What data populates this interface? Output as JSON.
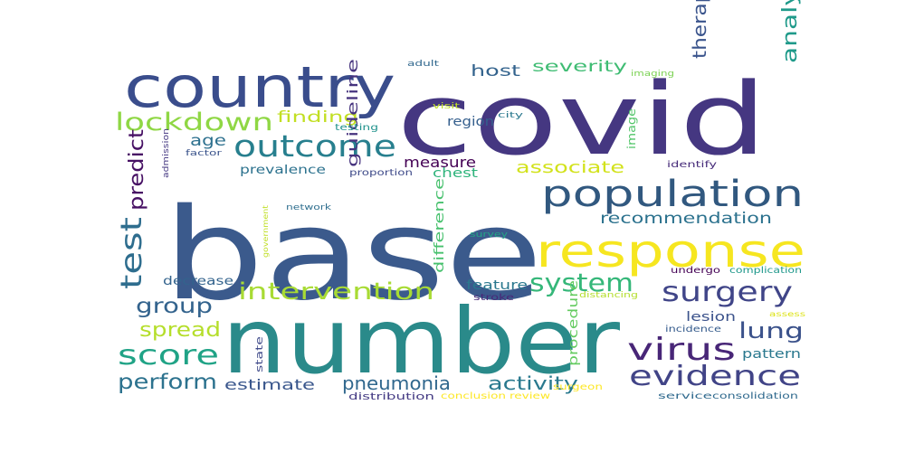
{
  "wordcloud": {
    "words": [
      {
        "text": "base",
        "color": "#3b5a8c"
      },
      {
        "text": "covid",
        "color": "#453781"
      },
      {
        "text": "number",
        "color": "#2a8a8a"
      },
      {
        "text": "country",
        "color": "#3a4d8c"
      },
      {
        "text": "response",
        "color": "#f6e620"
      },
      {
        "text": "population",
        "color": "#31587f"
      },
      {
        "text": "outcome",
        "color": "#277f8e"
      },
      {
        "text": "lockdown",
        "color": "#8fd744"
      },
      {
        "text": "virus",
        "color": "#482677"
      },
      {
        "text": "evidence",
        "color": "#414487"
      },
      {
        "text": "intervention",
        "color": "#a8db34"
      },
      {
        "text": "surgery",
        "color": "#404588"
      },
      {
        "text": "test",
        "color": "#2e6d8e"
      },
      {
        "text": "system",
        "color": "#35b779"
      },
      {
        "text": "score",
        "color": "#20a386"
      },
      {
        "text": "group",
        "color": "#33638d"
      },
      {
        "text": "predict",
        "color": "#471164"
      },
      {
        "text": "perform",
        "color": "#2c728e"
      },
      {
        "text": "lung",
        "color": "#3b528b"
      },
      {
        "text": "spread",
        "color": "#b5de2b"
      },
      {
        "text": "analysis",
        "color": "#1f9a8a"
      },
      {
        "text": "therapy",
        "color": "#3a548c"
      },
      {
        "text": "pneumonia",
        "color": "#31688e"
      },
      {
        "text": "activity",
        "color": "#29798e"
      },
      {
        "text": "recommendation",
        "color": "#2c728e"
      },
      {
        "text": "associate",
        "color": "#d2e21b"
      },
      {
        "text": "severity",
        "color": "#3fbc73"
      },
      {
        "text": "host",
        "color": "#33638d"
      },
      {
        "text": "finding",
        "color": "#c2df23"
      },
      {
        "text": "measure",
        "color": "#440154"
      },
      {
        "text": "age",
        "color": "#2d708e"
      },
      {
        "text": "guideline",
        "color": "#46337e"
      },
      {
        "text": "estimate",
        "color": "#39568c"
      },
      {
        "text": "procedure",
        "color": "#63cb5f"
      },
      {
        "text": "difference",
        "color": "#48c16e"
      },
      {
        "text": "feature",
        "color": "#2a788e"
      },
      {
        "text": "lesion",
        "color": "#3b528b"
      },
      {
        "text": "pattern",
        "color": "#2a788e"
      },
      {
        "text": "region",
        "color": "#355f8d"
      },
      {
        "text": "chest",
        "color": "#2fb47c"
      },
      {
        "text": "prevalence",
        "color": "#2c728e"
      },
      {
        "text": "decrease",
        "color": "#33638d"
      },
      {
        "text": "image",
        "color": "#52c569"
      },
      {
        "text": "state",
        "color": "#3e4989"
      },
      {
        "text": "stroke",
        "color": "#482878"
      },
      {
        "text": "distribution",
        "color": "#443a83"
      },
      {
        "text": "conclusion",
        "color": "#fde725"
      },
      {
        "text": "review",
        "color": "#fde725"
      },
      {
        "text": "surgeon",
        "color": "#fde725"
      },
      {
        "text": "service",
        "color": "#306a8e"
      },
      {
        "text": "consolidation",
        "color": "#306a8e"
      },
      {
        "text": "complication",
        "color": "#1f988b"
      },
      {
        "text": "undergo",
        "color": "#440154"
      },
      {
        "text": "distancing",
        "color": "#b4de2c"
      },
      {
        "text": "incidence",
        "color": "#365c8d"
      },
      {
        "text": "assess",
        "color": "#dde318"
      },
      {
        "text": "survey",
        "color": "#22a785"
      },
      {
        "text": "government",
        "color": "#c0df25"
      },
      {
        "text": "network",
        "color": "#2e6e8e"
      },
      {
        "text": "proportion",
        "color": "#3e4a89"
      },
      {
        "text": "identify",
        "color": "#472c7a"
      },
      {
        "text": "factor",
        "color": "#3a538b"
      },
      {
        "text": "admission",
        "color": "#453882"
      },
      {
        "text": "testing",
        "color": "#20928c"
      },
      {
        "text": "visit",
        "color": "#c0df25"
      },
      {
        "text": "city",
        "color": "#2a788e"
      },
      {
        "text": "adult",
        "color": "#31688e"
      },
      {
        "text": "imaging",
        "color": "#7ad151"
      }
    ]
  }
}
